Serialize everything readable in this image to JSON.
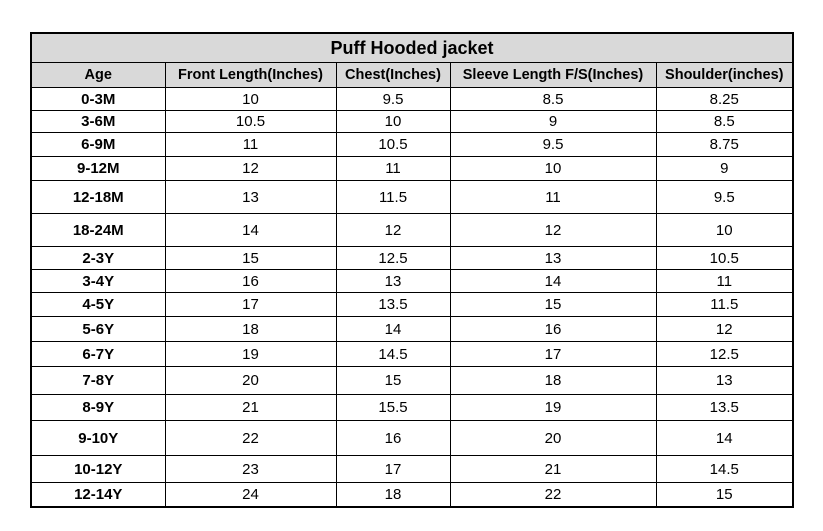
{
  "table": {
    "title": "Puff Hooded jacket",
    "header": [
      "Age",
      "Front Length(Inches)",
      "Chest(Inches)",
      "Sleeve Length F/S(Inches)",
      "Shoulder(inches)"
    ],
    "rows": [
      [
        "0-3M",
        "10",
        "9.5",
        "8.5",
        "8.25"
      ],
      [
        "3-6M",
        "10.5",
        "10",
        "9",
        "8.5"
      ],
      [
        "6-9M",
        "11",
        "10.5",
        "9.5",
        "8.75"
      ],
      [
        "9-12M",
        "12",
        "11",
        "10",
        "9"
      ],
      [
        "12-18M",
        "13",
        "11.5",
        "11",
        "9.5"
      ],
      [
        "18-24M",
        "14",
        "12",
        "12",
        "10"
      ],
      [
        "2-3Y",
        "15",
        "12.5",
        "13",
        "10.5"
      ],
      [
        "3-4Y",
        "16",
        "13",
        "14",
        "11"
      ],
      [
        "4-5Y",
        "17",
        "13.5",
        "15",
        "11.5"
      ],
      [
        "5-6Y",
        "18",
        "14",
        "16",
        "12"
      ],
      [
        "6-7Y",
        "19",
        "14.5",
        "17",
        "12.5"
      ],
      [
        "7-8Y",
        "20",
        "15",
        "18",
        "13"
      ],
      [
        "8-9Y",
        "21",
        "15.5",
        "19",
        "13.5"
      ],
      [
        "9-10Y",
        "22",
        "16",
        "20",
        "14"
      ],
      [
        "10-12Y",
        "23",
        "17",
        "21",
        "14.5"
      ],
      [
        "12-14Y",
        "24",
        "18",
        "22",
        "15"
      ]
    ]
  }
}
